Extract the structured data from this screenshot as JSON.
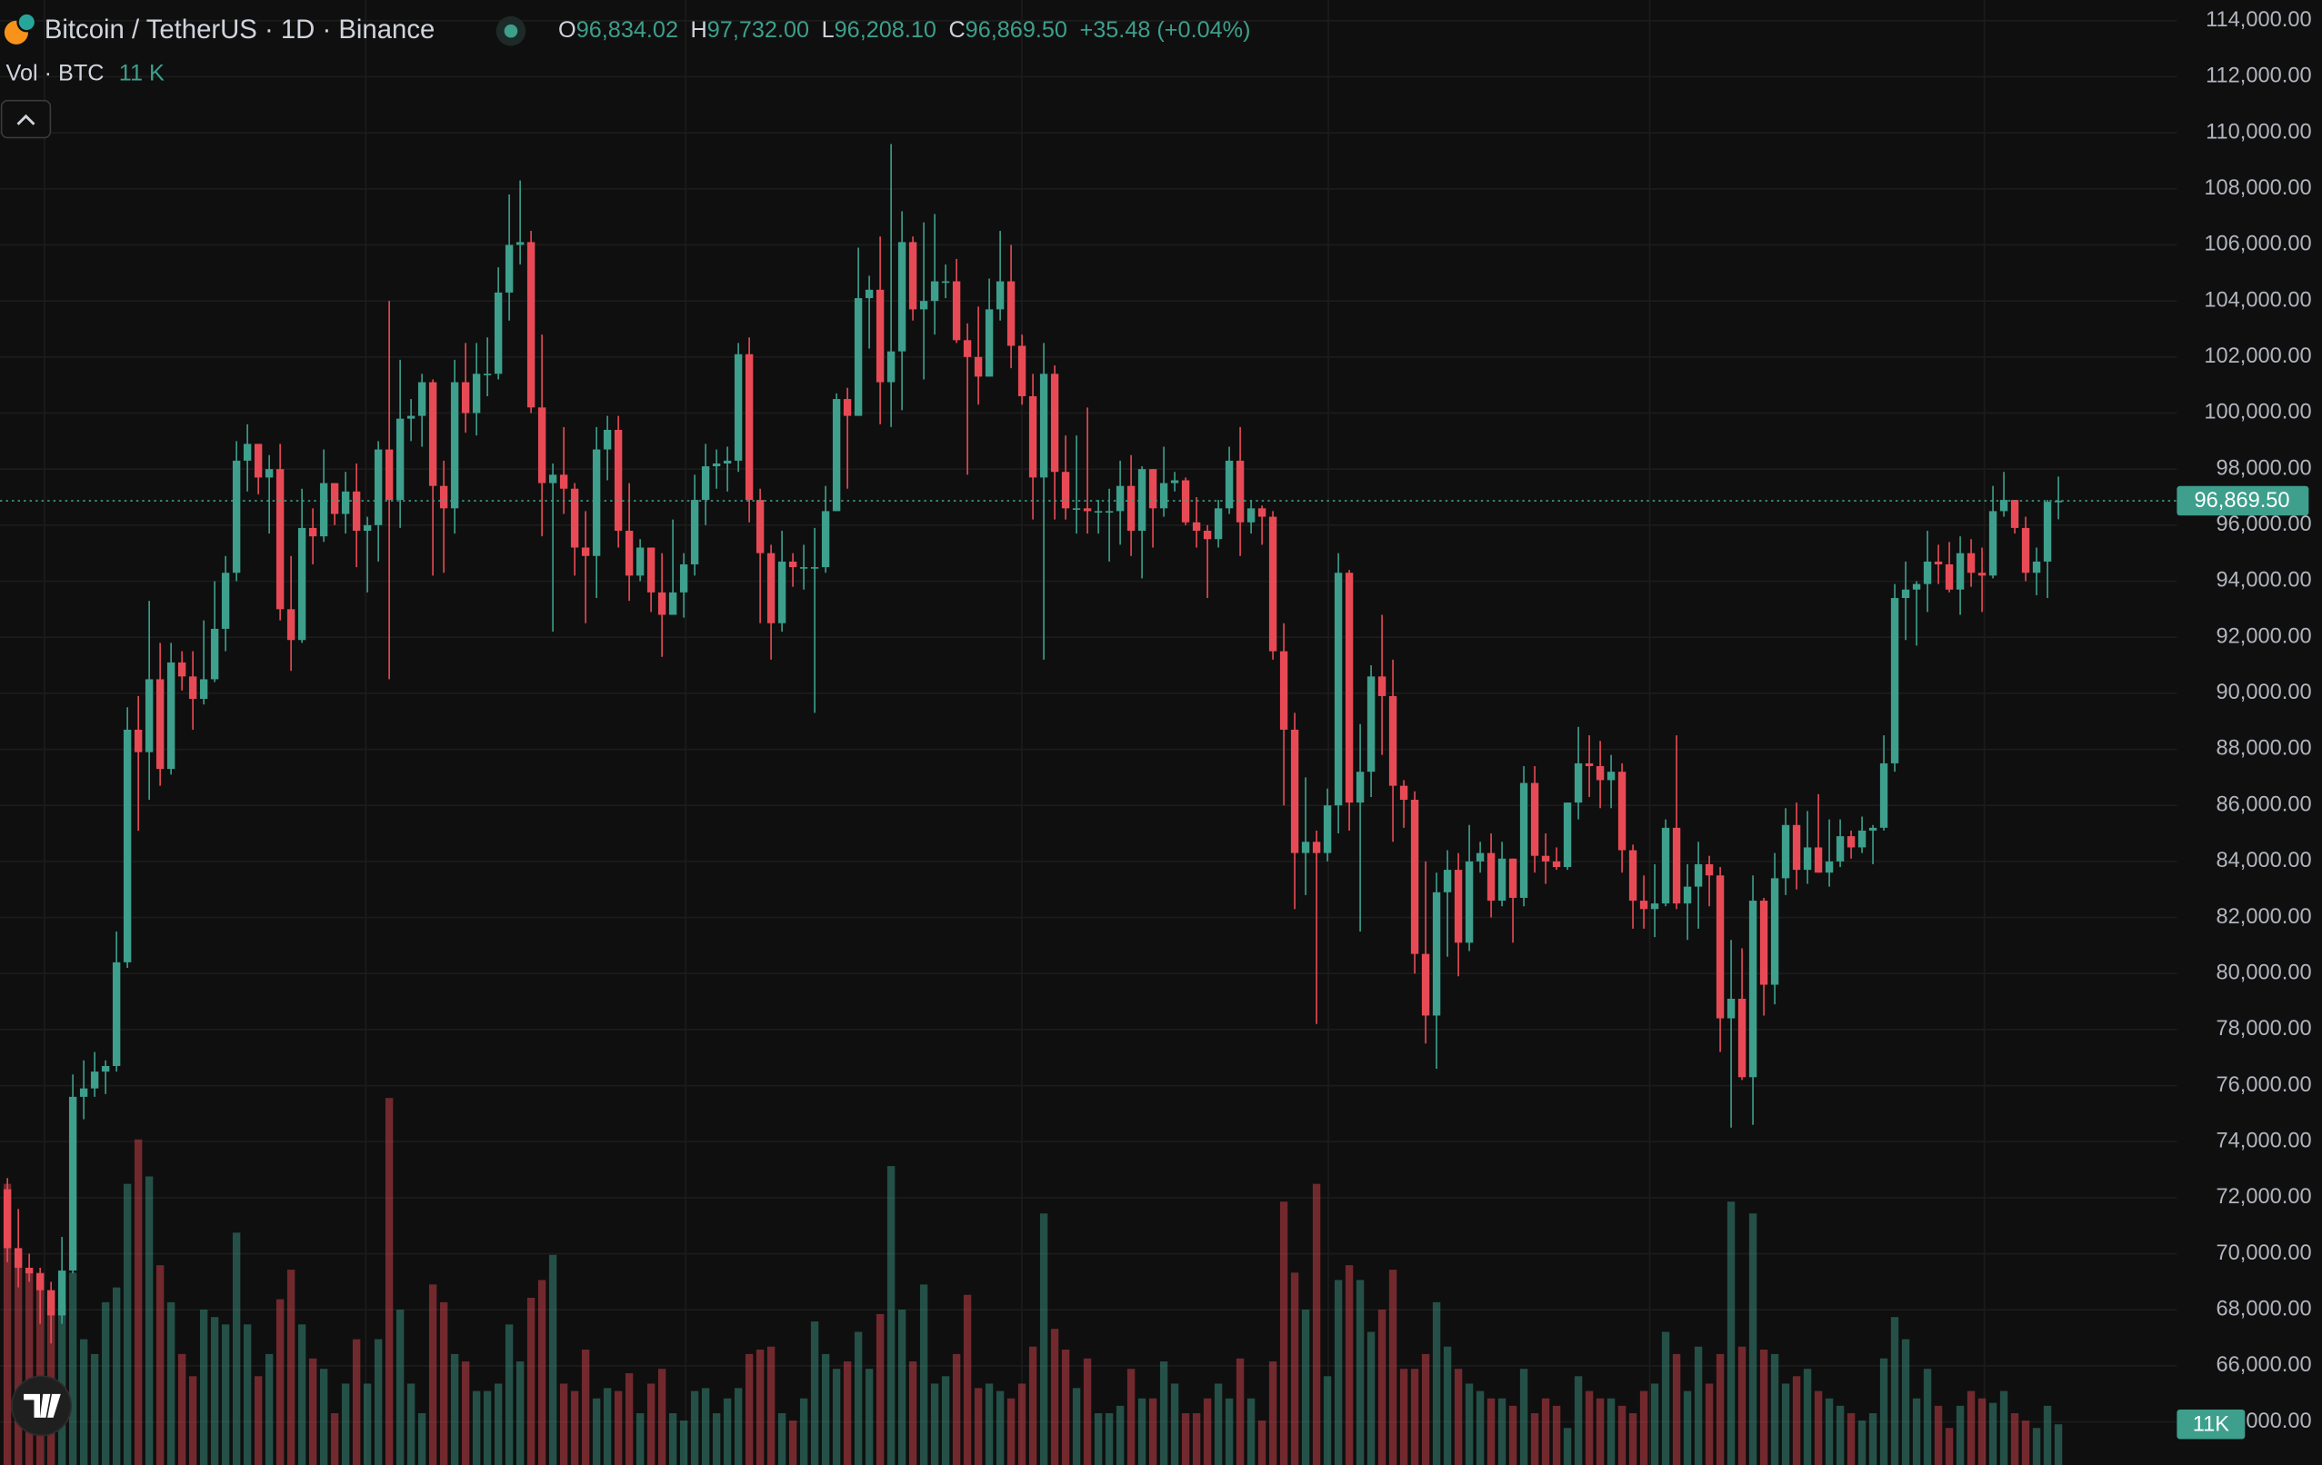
{
  "chart_data": {
    "type": "candlestick",
    "title": "Bitcoin / TetherUS · 1D · Binance",
    "legend": [
      {
        "label": "O",
        "value": "96,834.02"
      },
      {
        "label": "H",
        "value": "97,732.00"
      },
      {
        "label": "L",
        "value": "96,208.10"
      },
      {
        "label": "C",
        "value": "96,869.50"
      }
    ],
    "change": "+35.48 (+0.04%)",
    "last_price_tag": "96,869.50",
    "up_color": "#3d9f8c",
    "down_color": "#e84a55",
    "ylim": [
      62462,
      114739
    ],
    "yticks": [
      {
        "value": 64000,
        "label": "64,000.00"
      },
      {
        "value": 66000,
        "label": "66,000.00"
      },
      {
        "value": 68000,
        "label": "68,000.00"
      },
      {
        "value": 70000,
        "label": "70,000.00"
      },
      {
        "value": 72000,
        "label": "72,000.00"
      },
      {
        "value": 74000,
        "label": "74,000.00"
      },
      {
        "value": 76000,
        "label": "76,000.00"
      },
      {
        "value": 78000,
        "label": "78,000.00"
      },
      {
        "value": 80000,
        "label": "80,000.00"
      },
      {
        "value": 82000,
        "label": "82,000.00"
      },
      {
        "value": 84000,
        "label": "84,000.00"
      },
      {
        "value": 86000,
        "label": "86,000.00"
      },
      {
        "value": 88000,
        "label": "88,000.00"
      },
      {
        "value": 90000,
        "label": "90,000.00"
      },
      {
        "value": 92000,
        "label": "92,000.00"
      },
      {
        "value": 94000,
        "label": "94,000.00"
      },
      {
        "value": 96000,
        "label": "96,000.00"
      },
      {
        "value": 98000,
        "label": "98,000.00"
      },
      {
        "value": 100000,
        "label": "100,000.00"
      },
      {
        "value": 102000,
        "label": "102,000.00"
      },
      {
        "value": 104000,
        "label": "104,000.00"
      },
      {
        "value": 106000,
        "label": "106,000.00"
      },
      {
        "value": 108000,
        "label": "108,000.00"
      },
      {
        "value": 110000,
        "label": "110,000.00"
      },
      {
        "value": 112000,
        "label": "112,000.00"
      },
      {
        "value": 114000,
        "label": "114,000.00"
      }
    ],
    "grid": true,
    "open": [
      72300,
      70200,
      69500,
      69300,
      68700,
      67800,
      69400,
      75600,
      75900,
      76500,
      76700,
      80400,
      88700,
      87900,
      90500,
      87300,
      91100,
      90600,
      89800,
      90500,
      92300,
      94300,
      98300,
      98900,
      97700,
      98000,
      93000,
      91900,
      95900,
      95600,
      97500,
      96400,
      97200,
      95800,
      96000,
      98700,
      96900,
      99800,
      99900,
      101100,
      97400,
      96600,
      101100,
      100000,
      101400,
      101400,
      104300,
      106000,
      106100,
      100200,
      97500,
      97800,
      97300,
      95200,
      94900,
      98700,
      99400,
      95800,
      94200,
      95200,
      93600,
      92800,
      93600,
      94600,
      96900,
      98100,
      98200,
      98300,
      102100,
      96900,
      95000,
      92500,
      94700,
      94500,
      94500,
      94500,
      96500,
      100500,
      99900,
      104100,
      104400,
      101100,
      102200,
      106100,
      103700,
      104000,
      104700,
      104700,
      102600,
      102000,
      101300,
      103700,
      104700,
      102400,
      100600,
      97700,
      101400,
      97900,
      96600,
      96600,
      96500,
      96500,
      96500,
      97400,
      95800,
      98000,
      96600,
      97500,
      97600,
      96100,
      95800,
      95500,
      96600,
      98300,
      96100,
      96600,
      96300,
      91500,
      88700,
      84300,
      84700,
      84300,
      86000,
      94300,
      86100,
      87200,
      90600,
      89900,
      86700,
      86200,
      80700,
      78500,
      82900,
      83700,
      81100,
      84000,
      84300,
      82600,
      84100,
      82700,
      86800,
      84200,
      84000,
      83800,
      86100,
      87500,
      87400,
      86900,
      87200,
      84400,
      82600,
      82300,
      82500,
      85200,
      82500,
      83100,
      83900,
      83500,
      78400,
      79100,
      76300,
      82600,
      79600,
      83400,
      85300,
      83700,
      84500,
      83600,
      84000,
      84900,
      84500,
      85100,
      85200,
      87500,
      93400,
      93700,
      93900,
      94700,
      94600,
      93700,
      95000,
      94300,
      94200,
      96500,
      96900,
      95900,
      94300,
      94700,
      96834.02
    ],
    "high": [
      72700,
      71600,
      70000,
      69500,
      69000,
      70600,
      76400,
      76900,
      77200,
      76900,
      81500,
      89500,
      89900,
      93300,
      91800,
      91800,
      91500,
      91500,
      92600,
      94000,
      94900,
      99000,
      99600,
      98700,
      98500,
      98900,
      94900,
      97300,
      96600,
      98700,
      97500,
      97900,
      98200,
      96300,
      99000,
      104000,
      101900,
      100500,
      101400,
      101200,
      98300,
      101900,
      102500,
      102500,
      102700,
      105200,
      107800,
      108300,
      106500,
      102800,
      98200,
      99500,
      97500,
      96500,
      99500,
      99900,
      99900,
      97500,
      95500,
      95200,
      95000,
      96200,
      95000,
      97800,
      98900,
      98700,
      98800,
      102500,
      102700,
      97300,
      95300,
      95800,
      95000,
      95300,
      95900,
      97400,
      100700,
      100900,
      105900,
      104900,
      106300,
      109600,
      107200,
      106300,
      106800,
      107100,
      105300,
      105500,
      103200,
      103800,
      104800,
      106500,
      106000,
      102800,
      101400,
      102500,
      101700,
      99200,
      99200,
      100200,
      96900,
      97300,
      98300,
      98500,
      98100,
      98000,
      98800,
      97900,
      97700,
      97000,
      96000,
      96900,
      98800,
      99500,
      96900,
      96700,
      96500,
      92500,
      89300,
      87000,
      85100,
      86600,
      95000,
      94400,
      88900,
      91000,
      92800,
      91200,
      86900,
      86500,
      84000,
      83600,
      84400,
      84300,
      85300,
      84700,
      85000,
      84700,
      84100,
      87400,
      87400,
      85000,
      84500,
      86100,
      88800,
      88500,
      88300,
      87800,
      87500,
      84600,
      83500,
      83900,
      85500,
      88500,
      83900,
      84700,
      84200,
      83800,
      81200,
      80900,
      83500,
      82700,
      84300,
      85900,
      86100,
      85800,
      86400,
      85500,
      85500,
      85100,
      85600,
      85300,
      88500,
      93900,
      94700,
      94000,
      95800,
      95300,
      95400,
      95600,
      95500,
      95200,
      97400,
      97900,
      96900,
      96300,
      95200,
      96900,
      97732
    ],
    "low": [
      69700,
      68800,
      69000,
      67500,
      66800,
      67500,
      69300,
      74800,
      75600,
      75700,
      76500,
      80200,
      85100,
      86200,
      86700,
      87100,
      90100,
      88700,
      89600,
      90400,
      91500,
      94000,
      97200,
      97100,
      95700,
      92600,
      90800,
      91800,
      94600,
      95400,
      96000,
      95700,
      94500,
      93600,
      94700,
      90500,
      95900,
      99000,
      98800,
      94200,
      94300,
      95700,
      99300,
      99200,
      100600,
      101200,
      103300,
      105300,
      100000,
      95600,
      92200,
      96400,
      94200,
      92500,
      93400,
      97600,
      95200,
      93300,
      94000,
      92900,
      91300,
      92800,
      92700,
      94200,
      96000,
      97300,
      97200,
      97900,
      96100,
      92500,
      91200,
      92200,
      93800,
      93700,
      89300,
      94300,
      96500,
      97300,
      99900,
      102300,
      99600,
      99500,
      100100,
      103300,
      101200,
      102800,
      104100,
      102500,
      97800,
      100300,
      101300,
      103300,
      101600,
      100300,
      96200,
      91200,
      96200,
      96200,
      95700,
      95700,
      95700,
      94700,
      95300,
      94900,
      94100,
      95200,
      96300,
      97200,
      96000,
      95200,
      93400,
      95200,
      96400,
      94900,
      95700,
      95300,
      91200,
      86000,
      82300,
      82800,
      78200,
      84000,
      85000,
      85100,
      81500,
      86300,
      87800,
      84700,
      85200,
      80000,
      77500,
      76600,
      80600,
      79900,
      80800,
      83600,
      82000,
      82400,
      81100,
      82400,
      83600,
      83200,
      83700,
      83700,
      85500,
      86300,
      85900,
      85900,
      83600,
      81600,
      81600,
      81300,
      82400,
      82300,
      81200,
      81600,
      82400,
      77200,
      74500,
      76200,
      74600,
      78500,
      78900,
      82800,
      83000,
      83200,
      83600,
      83100,
      83800,
      84100,
      84300,
      83900,
      85100,
      87200,
      91900,
      91700,
      92900,
      93900,
      93600,
      92800,
      93800,
      92900,
      94100,
      96300,
      95700,
      94000,
      93500,
      93400,
      96208.1
    ],
    "close": [
      70200,
      69500,
      69300,
      68700,
      67800,
      69400,
      75600,
      75900,
      76500,
      76700,
      80400,
      88700,
      87900,
      90500,
      87300,
      91100,
      90600,
      89800,
      90500,
      92300,
      94300,
      98300,
      98900,
      97700,
      98000,
      93000,
      91900,
      95900,
      95600,
      97500,
      96400,
      97200,
      95800,
      96000,
      98700,
      96900,
      99800,
      99900,
      101100,
      97400,
      96600,
      101100,
      100000,
      101400,
      101400,
      104300,
      106000,
      106100,
      100200,
      97500,
      97800,
      97300,
      95200,
      94900,
      98700,
      99400,
      95800,
      94200,
      95200,
      93600,
      92800,
      93600,
      94600,
      96900,
      98100,
      98200,
      98300,
      102100,
      96900,
      95000,
      92500,
      94700,
      94500,
      94500,
      94500,
      96500,
      100500,
      99900,
      104100,
      104400,
      101100,
      102200,
      106100,
      103700,
      104000,
      104700,
      104700,
      102600,
      102000,
      101300,
      103700,
      104700,
      102400,
      100600,
      97700,
      101400,
      97900,
      96600,
      96600,
      96500,
      96500,
      96500,
      97400,
      95800,
      98000,
      96600,
      97500,
      97600,
      96100,
      95800,
      95500,
      96600,
      98300,
      96100,
      96600,
      96300,
      91500,
      88700,
      84300,
      84700,
      84300,
      86000,
      94300,
      86100,
      87200,
      90600,
      89900,
      86700,
      86200,
      80700,
      78500,
      82900,
      83700,
      81100,
      84000,
      84300,
      82600,
      84100,
      82700,
      86800,
      84200,
      84000,
      83800,
      86100,
      87500,
      87400,
      86900,
      87200,
      84400,
      82600,
      82300,
      82500,
      85200,
      82500,
      83100,
      83900,
      83500,
      78400,
      79100,
      76300,
      82600,
      79600,
      83400,
      85300,
      83700,
      84500,
      83600,
      84000,
      84900,
      84500,
      85100,
      85200,
      87500,
      93400,
      93700,
      93900,
      94700,
      94600,
      93700,
      95000,
      94300,
      94200,
      96500,
      96900,
      95900,
      94300,
      94700,
      96834.02,
      96869.5
    ],
    "y2lim": [
      0,
      396000
    ],
    "volume": {
      "name": "Vol · BTC",
      "value_label": "11 K",
      "tag": "11K",
      "axis": "y2",
      "values": [
        76000,
        58000,
        52800,
        52000,
        47200,
        44000,
        52000,
        34000,
        30000,
        44000,
        48000,
        76000,
        88000,
        78000,
        54000,
        44000,
        30000,
        24000,
        42000,
        40000,
        38000,
        62800,
        38000,
        24000,
        30000,
        44800,
        52800,
        38000,
        28800,
        26000,
        14000,
        22000,
        34000,
        22000,
        34000,
        99200,
        42000,
        22000,
        14000,
        48800,
        44000,
        30000,
        28000,
        20000,
        20000,
        22000,
        38000,
        28000,
        45200,
        50000,
        56800,
        22000,
        20000,
        31200,
        18000,
        20800,
        20000,
        24800,
        14000,
        22000,
        26000,
        14000,
        12000,
        20000,
        20800,
        14000,
        18000,
        20800,
        30000,
        31200,
        32000,
        14000,
        12000,
        18000,
        38800,
        30000,
        26000,
        28000,
        36000,
        26000,
        40800,
        80800,
        42000,
        28000,
        48800,
        22000,
        24000,
        30000,
        46000,
        20800,
        22000,
        20000,
        18000,
        22000,
        32000,
        68000,
        36800,
        31200,
        20800,
        28800,
        14000,
        14000,
        16000,
        26000,
        18000,
        18000,
        28000,
        22000,
        14000,
        14000,
        18000,
        22000,
        18000,
        28800,
        18000,
        12000,
        28000,
        71200,
        52000,
        42000,
        76000,
        24000,
        50000,
        54000,
        50000,
        36000,
        42000,
        52800,
        26000,
        26000,
        30000,
        44000,
        32000,
        26000,
        22000,
        20000,
        18000,
        18000,
        16000,
        26000,
        14000,
        18000,
        16000,
        10000,
        24000,
        20000,
        18000,
        18000,
        16000,
        14000,
        20000,
        22000,
        36000,
        30000,
        20000,
        32000,
        22000,
        30000,
        71200,
        32000,
        68000,
        31200,
        30000,
        22000,
        24000,
        26000,
        20000,
        18000,
        16000,
        14000,
        12000,
        14000,
        28800,
        40000,
        34000,
        18000,
        26000,
        16000,
        10000,
        16000,
        20000,
        18000,
        16800,
        20000,
        14000,
        12000,
        10000,
        16000,
        11000
      ]
    }
  }
}
